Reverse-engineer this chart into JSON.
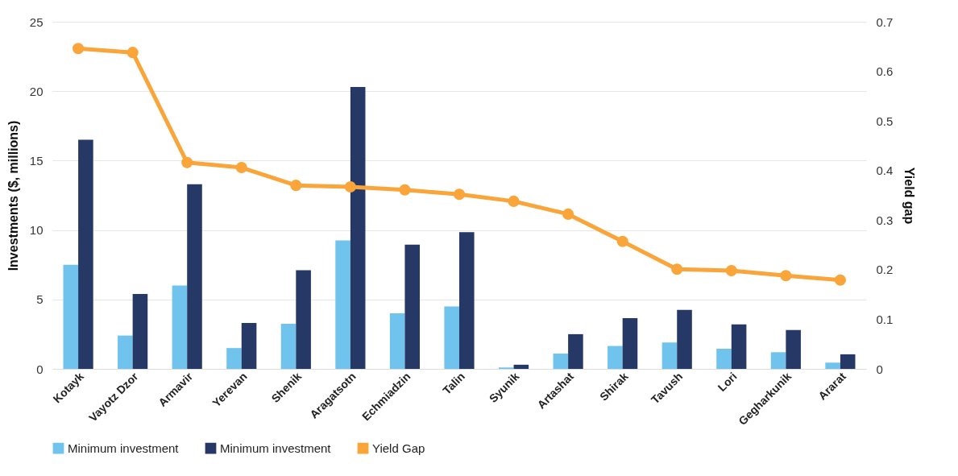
{
  "chart_data": {
    "type": "bar",
    "categories": [
      "Kotayk",
      "Vayotz Dzor",
      "Armavir",
      "Yerevan",
      "Shenik",
      "Aragatsotn",
      "Echmiadzin",
      "Talin",
      "Syunik",
      "Artashat",
      "Shirak",
      "Tavush",
      "Lori",
      "Gegharkunik",
      "Ararat"
    ],
    "series": [
      {
        "name": "Minimum investment",
        "color": "#6fc3ed",
        "values": [
          7.5,
          2.4,
          6.0,
          1.5,
          3.25,
          9.25,
          4.0,
          4.5,
          0.1,
          1.1,
          1.65,
          1.9,
          1.45,
          1.2,
          0.45
        ]
      },
      {
        "name": "Minimum investment",
        "color": "#263866",
        "values": [
          16.5,
          5.4,
          13.3,
          3.3,
          7.1,
          20.3,
          8.95,
          9.85,
          0.3,
          2.5,
          3.65,
          4.25,
          3.2,
          2.8,
          1.05
        ]
      },
      {
        "name": "Yield Gap",
        "type": "line",
        "axis": "y2",
        "color": "#f9a53a",
        "values": [
          0.646,
          0.638,
          0.416,
          0.406,
          0.37,
          0.367,
          0.361,
          0.352,
          0.338,
          0.312,
          0.257,
          0.201,
          0.198,
          0.188,
          0.179
        ]
      }
    ],
    "ylabel": "Investments ($, millions)",
    "y2label": "Yield gap",
    "ylim": [
      0,
      25
    ],
    "yticks": [
      0,
      5,
      10,
      15,
      20,
      25
    ],
    "y2lim": [
      0,
      0.7
    ],
    "y2ticks": [
      0,
      0.1,
      0.2,
      0.3,
      0.4,
      0.5,
      0.6,
      0.7
    ],
    "grid": "y",
    "legend": "bottom",
    "marker": "circle",
    "line_style": "solid"
  }
}
